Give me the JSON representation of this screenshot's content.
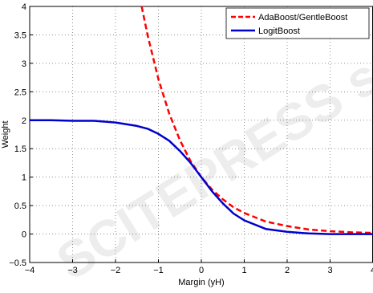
{
  "watermark": "SCITEPRESS science and technology publications",
  "chart_data": {
    "type": "line",
    "title": "",
    "xlabel": "Margin (yH)",
    "ylabel": "Weight",
    "xlim": [
      -4,
      4
    ],
    "ylim": [
      -0.5,
      4
    ],
    "xticks": [
      -4,
      -3,
      -2,
      -1,
      0,
      1,
      2,
      3,
      4
    ],
    "xtick_labels": [
      "−4",
      "−3",
      "−2",
      "−1",
      "0",
      "1",
      "2",
      "3",
      "4"
    ],
    "yticks": [
      -0.5,
      0,
      0.5,
      1,
      1.5,
      2,
      2.5,
      3,
      3.5,
      4
    ],
    "ytick_labels": [
      "−0.5",
      "0",
      "0.5",
      "1",
      "1.5",
      "2",
      "2.5",
      "3",
      "3.5",
      "4"
    ],
    "grid": true,
    "legend_position": "top-right",
    "series": [
      {
        "name": "AdaBoost/GentleBoost",
        "color": "#ff0000",
        "style": "dashed",
        "x": [
          -1.39,
          -1.25,
          -1.0,
          -0.75,
          -0.5,
          -0.25,
          0.0,
          0.25,
          0.5,
          0.75,
          1.0,
          1.5,
          2.0,
          2.5,
          3.0,
          3.5,
          4.0
        ],
        "y": [
          4.0,
          3.49,
          2.72,
          2.12,
          1.65,
          1.28,
          1.0,
          0.78,
          0.61,
          0.47,
          0.37,
          0.22,
          0.14,
          0.08,
          0.05,
          0.03,
          0.02
        ]
      },
      {
        "name": "LogitBoost",
        "color": "#0000cc",
        "style": "solid",
        "x": [
          -4.0,
          -3.5,
          -3.0,
          -2.5,
          -2.0,
          -1.5,
          -1.25,
          -1.0,
          -0.75,
          -0.5,
          -0.25,
          0.0,
          0.25,
          0.5,
          0.75,
          1.0,
          1.5,
          2.0,
          2.5,
          3.0,
          3.5,
          4.0
        ],
        "y": [
          2.0,
          2.0,
          1.99,
          1.99,
          1.96,
          1.9,
          1.85,
          1.76,
          1.64,
          1.46,
          1.25,
          1.0,
          0.75,
          0.54,
          0.36,
          0.24,
          0.09,
          0.04,
          0.01,
          0.0,
          0.0,
          0.0
        ]
      }
    ]
  }
}
